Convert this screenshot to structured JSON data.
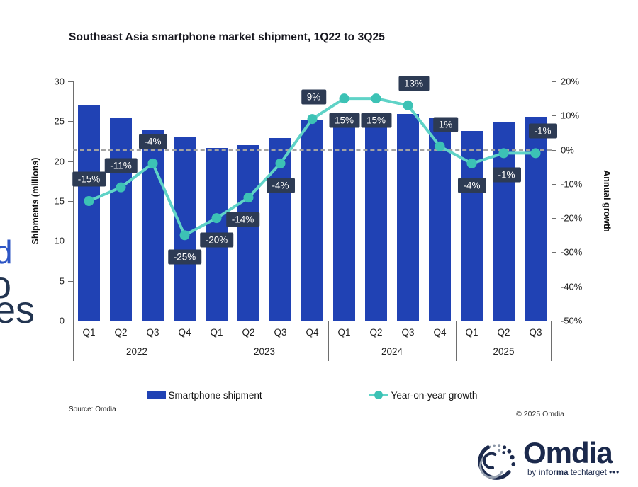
{
  "title": "Southeast Asia smartphone market shipment, 1Q22 to 3Q25",
  "edge_fragments": [
    {
      "text": "d",
      "color": "#2d55c5"
    },
    {
      "text": "o",
      "color": "#223450"
    },
    {
      "text": "es",
      "color": "#223450"
    }
  ],
  "colors": {
    "bar_blue": "#2042b4",
    "line_teal": "#5fd3c7",
    "marker_teal": "#3cc2b5",
    "label_box": "#2d3b54",
    "dashed_gray": "#a3a3a3"
  },
  "chart_data": {
    "type": "bar+line combo",
    "title": "Southeast Asia smartphone market shipment, 1Q22 to 3Q25",
    "categories": [
      "Q1",
      "Q2",
      "Q3",
      "Q4",
      "Q1",
      "Q2",
      "Q3",
      "Q4",
      "Q1",
      "Q2",
      "Q3",
      "Q4",
      "Q1",
      "Q2",
      "Q3"
    ],
    "year_groups": [
      {
        "label": "2022",
        "count": 4
      },
      {
        "label": "2023",
        "count": 4
      },
      {
        "label": "2024",
        "count": 4
      },
      {
        "label": "2025",
        "count": 3
      }
    ],
    "series": [
      {
        "name": "Smartphone shipment",
        "type": "bar",
        "axis": "left",
        "values": [
          27.0,
          25.4,
          24.0,
          23.1,
          21.7,
          22.0,
          22.9,
          25.2,
          25.0,
          25.2,
          25.9,
          25.4,
          23.8,
          24.9,
          25.6
        ]
      },
      {
        "name": "Year-on-year growth",
        "type": "line",
        "axis": "right",
        "values": [
          -15,
          -11,
          -4,
          -25,
          -20,
          -14,
          -4,
          9,
          15,
          15,
          13,
          1,
          -4,
          -1,
          -1
        ],
        "labels": [
          "-15%",
          "-11%",
          "-4%",
          "-25%",
          "-20%",
          "-14%",
          "-4%",
          "9%",
          "15%",
          "15%",
          "13%",
          "1%",
          "-4%",
          "-1%",
          "-1%"
        ],
        "label_pos": [
          "above",
          "above",
          "above",
          "below",
          "below",
          "below",
          "below",
          "above",
          "below",
          "below",
          "above",
          "above",
          "below",
          "below",
          "above"
        ],
        "label_dx": [
          0,
          0,
          0,
          0,
          0,
          -8,
          0,
          2,
          0,
          0,
          8,
          8,
          0,
          4,
          10
        ]
      }
    ],
    "left_axis": {
      "label": "Shipments (millions)",
      "ticks": [
        30,
        25,
        20,
        15,
        10,
        5,
        0
      ],
      "min": 0,
      "max": 30
    },
    "right_axis": {
      "label": "Annual growth",
      "ticks": [
        "20%",
        "10%",
        "0%",
        "-10%",
        "-20%",
        "-30%",
        "-40%",
        "-50%"
      ],
      "min": -50,
      "max": 20
    },
    "zero_line": {
      "value": 0,
      "style": "dashed"
    },
    "grid": false,
    "legend_position": "bottom"
  },
  "legend": {
    "bar_label": "Smartphone shipment",
    "line_label": "Year-on-year growth"
  },
  "footer": {
    "source": "Source: Omdia",
    "copyright": "© 2025 Omdia"
  },
  "brand": {
    "name": "Omdia",
    "by": "by",
    "informa": "informa",
    "techtarget": "techtarget",
    "dots": "•••"
  }
}
